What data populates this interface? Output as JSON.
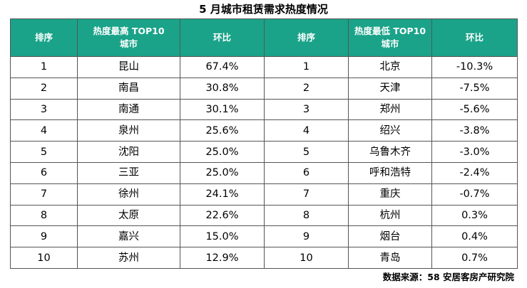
{
  "title": "5 月城市租赁需求热度情况",
  "headers": {
    "rank": "排序",
    "top_city_line1": "热度最高 TOP10",
    "top_city_line2": "城市",
    "mom": "环比",
    "bottom_city_line1": "热度最低 TOP10",
    "bottom_city_line2": "城市"
  },
  "rows": [
    {
      "rank_top": "1",
      "city_top": "昆山",
      "mom_top": "67.4%",
      "rank_bottom": "1",
      "city_bottom": "北京",
      "mom_bottom": "-10.3%"
    },
    {
      "rank_top": "2",
      "city_top": "南昌",
      "mom_top": "30.8%",
      "rank_bottom": "2",
      "city_bottom": "天津",
      "mom_bottom": "-7.5%"
    },
    {
      "rank_top": "3",
      "city_top": "南通",
      "mom_top": "30.1%",
      "rank_bottom": "3",
      "city_bottom": "郑州",
      "mom_bottom": "-5.6%"
    },
    {
      "rank_top": "4",
      "city_top": "泉州",
      "mom_top": "25.6%",
      "rank_bottom": "4",
      "city_bottom": "绍兴",
      "mom_bottom": "-3.8%"
    },
    {
      "rank_top": "5",
      "city_top": "沈阳",
      "mom_top": "25.0%",
      "rank_bottom": "5",
      "city_bottom": "乌鲁木齐",
      "mom_bottom": "-3.0%"
    },
    {
      "rank_top": "6",
      "city_top": "三亚",
      "mom_top": "25.0%",
      "rank_bottom": "6",
      "city_bottom": "呼和浩特",
      "mom_bottom": "-2.4%"
    },
    {
      "rank_top": "7",
      "city_top": "徐州",
      "mom_top": "24.1%",
      "rank_bottom": "7",
      "city_bottom": "重庆",
      "mom_bottom": "-0.7%"
    },
    {
      "rank_top": "8",
      "city_top": "太原",
      "mom_top": "22.6%",
      "rank_bottom": "8",
      "city_bottom": "杭州",
      "mom_bottom": "0.3%"
    },
    {
      "rank_top": "9",
      "city_top": "嘉兴",
      "mom_top": "15.0%",
      "rank_bottom": "9",
      "city_bottom": "烟台",
      "mom_bottom": "0.4%"
    },
    {
      "rank_top": "10",
      "city_top": "苏州",
      "mom_top": "12.9%",
      "rank_bottom": "10",
      "city_bottom": "青岛",
      "mom_bottom": "0.7%"
    }
  ],
  "source": "数据来源：58 安居客房产研究院",
  "colors": {
    "header_bg": "#1aa389",
    "header_text": "#ffffff",
    "border": "#555555"
  }
}
